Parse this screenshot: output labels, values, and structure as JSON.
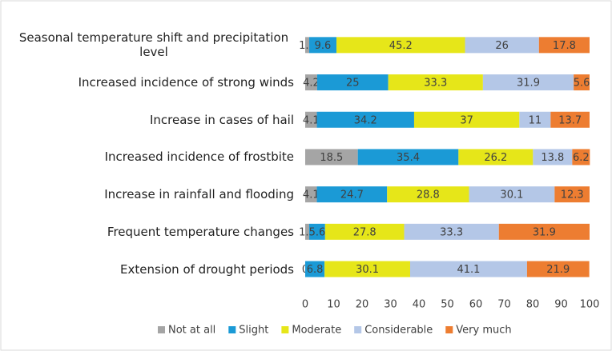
{
  "chart_data": {
    "type": "stacked-bar-horizontal",
    "categories": [
      "Seasonal temperature shift and precipitation level",
      "Increased incidence of strong winds",
      "Increase in cases of hail",
      "Increased incidence of frostbite",
      "Increase in rainfall and flooding",
      "Frequent temperature changes",
      "Extension of drought periods"
    ],
    "series": [
      {
        "name": "Not at all",
        "color": "#a5a5a5",
        "values": [
          1.4,
          4.2,
          4.1,
          18.5,
          4.1,
          1.4,
          0
        ]
      },
      {
        "name": "Slight",
        "color": "#1b9ad6",
        "values": [
          9.6,
          25,
          34.2,
          35.4,
          24.7,
          5.6,
          6.8
        ]
      },
      {
        "name": "Moderate",
        "color": "#e6e619",
        "values": [
          45.2,
          33.3,
          37,
          26.2,
          28.8,
          27.8,
          30.1
        ]
      },
      {
        "name": "Considerable",
        "color": "#b4c7e7",
        "values": [
          26,
          31.9,
          11,
          13.8,
          30.1,
          33.3,
          41.1
        ]
      },
      {
        "name": "Very much",
        "color": "#ed7d31",
        "values": [
          17.8,
          5.6,
          13.7,
          6.2,
          12.3,
          31.9,
          21.9
        ]
      }
    ],
    "xlim": [
      0,
      100
    ],
    "xticks": [
      0,
      10,
      20,
      30,
      40,
      50,
      60,
      70,
      80,
      90,
      100
    ],
    "grid": false,
    "legend": "bottom"
  }
}
